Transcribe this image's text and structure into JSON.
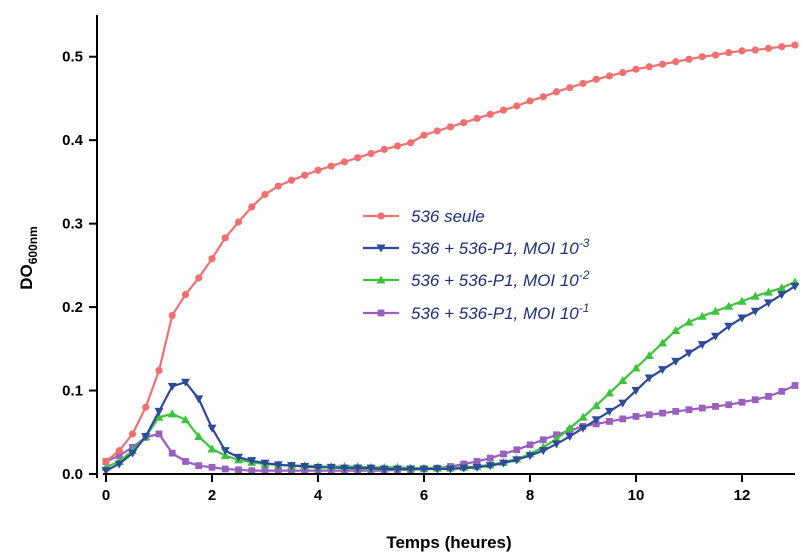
{
  "chart_data": {
    "type": "line",
    "title": "",
    "xlabel": "Temps (heures)",
    "ylabel": {
      "main": "DO",
      "sub": "600nm"
    },
    "xlim": [
      0,
      13
    ],
    "ylim": [
      0,
      0.55
    ],
    "xticks": [
      0,
      2,
      4,
      6,
      8,
      10,
      12
    ],
    "yticks": [
      0.0,
      0.1,
      0.2,
      0.3,
      0.4,
      0.5
    ],
    "ytick_labels": [
      "0.0",
      "0.1",
      "0.2",
      "0.3",
      "0.4",
      "0.5"
    ],
    "grid": false,
    "legend_position": "center",
    "x": [
      0,
      0.25,
      0.5,
      0.75,
      1,
      1.25,
      1.5,
      1.75,
      2,
      2.25,
      2.5,
      2.75,
      3,
      3.25,
      3.5,
      3.75,
      4,
      4.25,
      4.5,
      4.75,
      5,
      5.25,
      5.5,
      5.75,
      6,
      6.25,
      6.5,
      6.75,
      7,
      7.25,
      7.5,
      7.75,
      8,
      8.25,
      8.5,
      8.75,
      9,
      9.25,
      9.5,
      9.75,
      10,
      10.25,
      10.5,
      10.75,
      11,
      11.25,
      11.5,
      11.75,
      12,
      12.25,
      12.5,
      12.75,
      13
    ],
    "series": [
      {
        "name": "536 seule",
        "color": "#f07070",
        "marker": "circle",
        "values": [
          0.015,
          0.028,
          0.048,
          0.08,
          0.124,
          0.19,
          0.215,
          0.235,
          0.258,
          0.283,
          0.302,
          0.32,
          0.335,
          0.345,
          0.352,
          0.358,
          0.364,
          0.369,
          0.374,
          0.379,
          0.384,
          0.389,
          0.393,
          0.397,
          0.406,
          0.411,
          0.416,
          0.421,
          0.426,
          0.431,
          0.436,
          0.441,
          0.447,
          0.452,
          0.458,
          0.463,
          0.468,
          0.473,
          0.477,
          0.481,
          0.485,
          0.488,
          0.491,
          0.494,
          0.497,
          0.5,
          0.502,
          0.505,
          0.507,
          0.508,
          0.51,
          0.512,
          0.514
        ]
      },
      {
        "name": "536 + 536-P1, MOI 10^-3",
        "label_text": "536 + 536-P1, MOI 10",
        "label_exp": "-3",
        "color": "#2e4a9a",
        "marker": "triangle-down",
        "values": [
          0.004,
          0.012,
          0.025,
          0.045,
          0.075,
          0.105,
          0.11,
          0.09,
          0.055,
          0.028,
          0.02,
          0.016,
          0.013,
          0.011,
          0.01,
          0.009,
          0.008,
          0.008,
          0.007,
          0.007,
          0.007,
          0.006,
          0.006,
          0.006,
          0.006,
          0.006,
          0.006,
          0.007,
          0.008,
          0.01,
          0.013,
          0.017,
          0.022,
          0.028,
          0.036,
          0.045,
          0.055,
          0.065,
          0.075,
          0.085,
          0.1,
          0.115,
          0.125,
          0.135,
          0.145,
          0.155,
          0.165,
          0.177,
          0.187,
          0.195,
          0.205,
          0.215,
          0.225
        ]
      },
      {
        "name": "536 + 536-P1, MOI 10^-2",
        "label_text": "536 + 536-P1, MOI 10",
        "label_exp": "-2",
        "color": "#3cc43c",
        "marker": "triangle-up",
        "values": [
          0.008,
          0.015,
          0.028,
          0.045,
          0.068,
          0.072,
          0.065,
          0.045,
          0.03,
          0.022,
          0.017,
          0.014,
          0.012,
          0.011,
          0.01,
          0.01,
          0.009,
          0.009,
          0.009,
          0.009,
          0.008,
          0.008,
          0.008,
          0.007,
          0.007,
          0.007,
          0.007,
          0.008,
          0.009,
          0.011,
          0.014,
          0.018,
          0.024,
          0.032,
          0.042,
          0.055,
          0.068,
          0.082,
          0.097,
          0.112,
          0.127,
          0.142,
          0.157,
          0.172,
          0.182,
          0.189,
          0.195,
          0.201,
          0.207,
          0.213,
          0.218,
          0.223,
          0.23
        ]
      },
      {
        "name": "536 + 536-P1, MOI 10^-1",
        "label_text": "536 + 536-P1, MOI 10",
        "label_exp": "-1",
        "color": "#9a60c0",
        "marker": "square",
        "values": [
          0.015,
          0.022,
          0.032,
          0.044,
          0.048,
          0.025,
          0.015,
          0.01,
          0.008,
          0.006,
          0.005,
          0.004,
          0.004,
          0.004,
          0.004,
          0.004,
          0.004,
          0.004,
          0.004,
          0.004,
          0.004,
          0.004,
          0.005,
          0.005,
          0.006,
          0.007,
          0.009,
          0.012,
          0.015,
          0.019,
          0.024,
          0.029,
          0.035,
          0.041,
          0.047,
          0.052,
          0.057,
          0.06,
          0.063,
          0.066,
          0.069,
          0.071,
          0.073,
          0.075,
          0.077,
          0.079,
          0.081,
          0.083,
          0.086,
          0.089,
          0.093,
          0.099,
          0.106
        ]
      }
    ]
  }
}
